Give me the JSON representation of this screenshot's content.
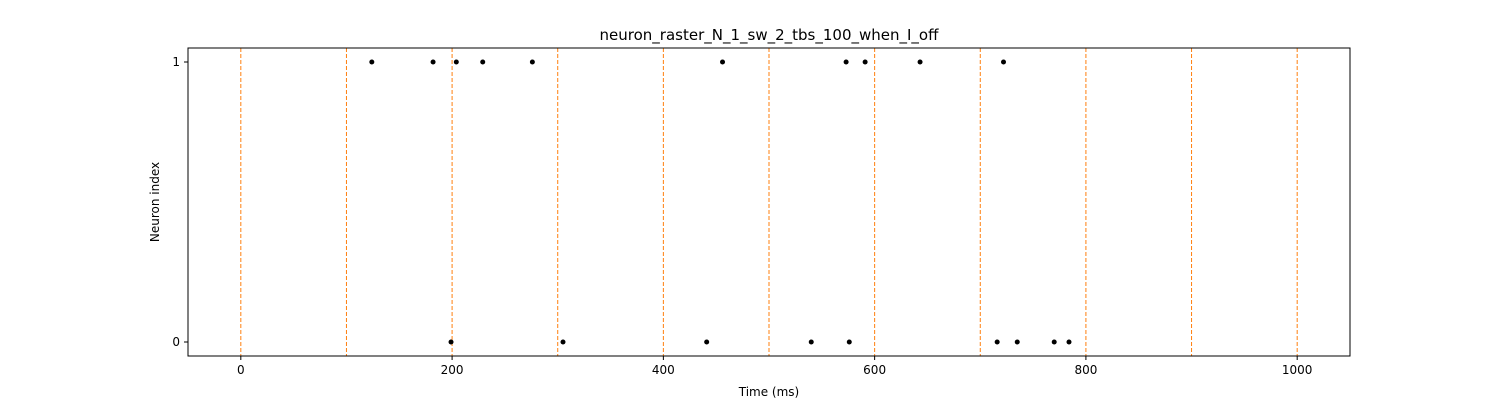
{
  "chart_data": {
    "type": "scatter",
    "title": "neuron_raster_N_1_sw_2_tbs_100_when_I_off",
    "xlabel": "Time (ms)",
    "ylabel": "Neuron index",
    "xlim": [
      -50,
      1050
    ],
    "ylim": [
      -0.05,
      1.05
    ],
    "x_ticks": [
      0,
      200,
      400,
      600,
      800,
      1000
    ],
    "y_ticks": [
      0,
      1
    ],
    "grid": false,
    "vlines": {
      "x": [
        0,
        100,
        200,
        300,
        400,
        500,
        600,
        700,
        800,
        900,
        1000
      ],
      "color": "#ff7f0e",
      "style": "dashed"
    },
    "series": [
      {
        "marker_color": "#000000",
        "points": [
          {
            "x": 124,
            "y": 1
          },
          {
            "x": 182,
            "y": 1
          },
          {
            "x": 204,
            "y": 1
          },
          {
            "x": 229,
            "y": 1
          },
          {
            "x": 276,
            "y": 1
          },
          {
            "x": 456,
            "y": 1
          },
          {
            "x": 573,
            "y": 1
          },
          {
            "x": 591,
            "y": 1
          },
          {
            "x": 643,
            "y": 1
          },
          {
            "x": 722,
            "y": 1
          },
          {
            "x": 199,
            "y": 0
          },
          {
            "x": 305,
            "y": 0
          },
          {
            "x": 441,
            "y": 0
          },
          {
            "x": 540,
            "y": 0
          },
          {
            "x": 576,
            "y": 0
          },
          {
            "x": 716,
            "y": 0
          },
          {
            "x": 735,
            "y": 0
          },
          {
            "x": 770,
            "y": 0
          },
          {
            "x": 784,
            "y": 0
          }
        ]
      }
    ]
  }
}
